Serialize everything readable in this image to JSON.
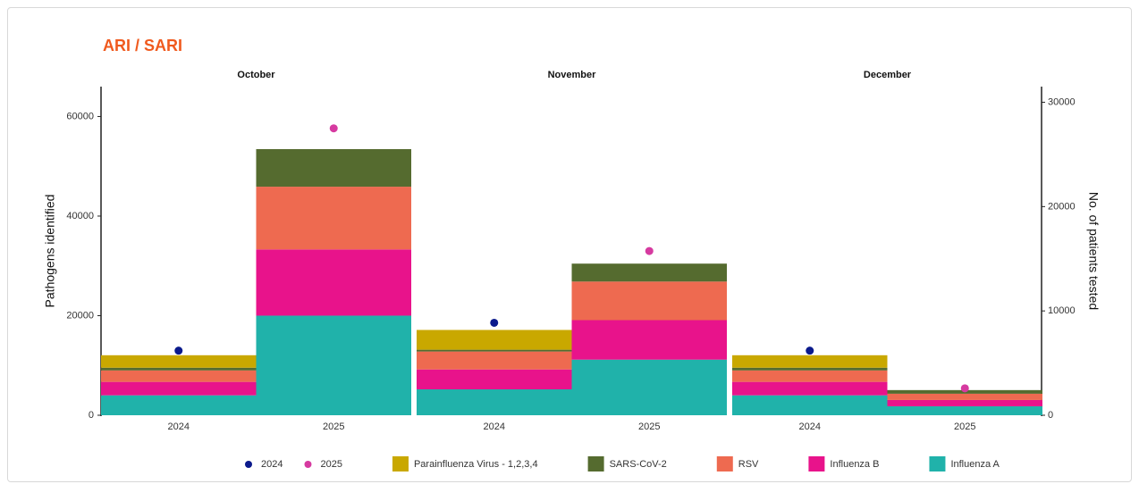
{
  "title": "ARI / SARI",
  "y_label": "Pathogens identified",
  "y2_label": "No. of patients tested",
  "ylim": [
    0,
    66000
  ],
  "yticks": [
    0,
    20000,
    40000,
    60000
  ],
  "y2lim": [
    0,
    31500
  ],
  "y2ticks": [
    0,
    10000,
    20000,
    30000
  ],
  "legend": "bottom",
  "chart_data": [
    {
      "type": "bar",
      "stacked": true,
      "title": "October",
      "categories": [
        "2024",
        "2025"
      ],
      "series": [
        {
          "name": "2024",
          "type": "scatter",
          "axis": "y2",
          "color": "#0b1a8c",
          "values": [
            6190,
            null
          ]
        },
        {
          "name": "2025",
          "type": "scatter",
          "axis": "y2",
          "color": "#d63aa0",
          "values": [
            null,
            27500
          ]
        },
        {
          "name": "Parainfluenza Virus - 1,2,3,4",
          "color": "#c9a800",
          "values": [
            2500,
            0
          ]
        },
        {
          "name": "SARS-CoV-2",
          "color": "#556b2f",
          "values": [
            550,
            7550
          ]
        },
        {
          "name": "RSV",
          "color": "#ee6a50",
          "values": [
            2300,
            12600
          ]
        },
        {
          "name": "Influenza B",
          "color": "#e8138b",
          "values": [
            2700,
            13300
          ]
        },
        {
          "name": "Influenza A",
          "color": "#20b2aa",
          "values": [
            4000,
            20000
          ]
        }
      ]
    },
    {
      "type": "bar",
      "stacked": true,
      "title": "November",
      "categories": [
        "2024",
        "2025"
      ],
      "series": [
        {
          "name": "2024",
          "type": "scatter",
          "axis": "y2",
          "color": "#0b1a8c",
          "values": [
            8860,
            null
          ]
        },
        {
          "name": "2025",
          "type": "scatter",
          "axis": "y2",
          "color": "#d63aa0",
          "values": [
            null,
            15740
          ]
        },
        {
          "name": "Parainfluenza Virus - 1,2,3,4",
          "color": "#c9a800",
          "values": [
            3970,
            0
          ]
        },
        {
          "name": "SARS-CoV-2",
          "color": "#556b2f",
          "values": [
            360,
            3600
          ]
        },
        {
          "name": "RSV",
          "color": "#ee6a50",
          "values": [
            3600,
            7750
          ]
        },
        {
          "name": "Influenza B",
          "color": "#e8138b",
          "values": [
            4000,
            7930
          ]
        },
        {
          "name": "Influenza A",
          "color": "#20b2aa",
          "values": [
            5200,
            11170
          ]
        }
      ]
    },
    {
      "type": "bar",
      "stacked": true,
      "title": "December",
      "categories": [
        "2024",
        "2025"
      ],
      "series": [
        {
          "name": "2024",
          "type": "scatter",
          "axis": "y2",
          "color": "#0b1a8c",
          "values": [
            6190,
            null
          ]
        },
        {
          "name": "2025",
          "type": "scatter",
          "axis": "y2",
          "color": "#d63aa0",
          "values": [
            null,
            2580
          ]
        },
        {
          "name": "Parainfluenza Virus - 1,2,3,4",
          "color": "#c9a800",
          "values": [
            2500,
            0
          ]
        },
        {
          "name": "SARS-CoV-2",
          "color": "#556b2f",
          "values": [
            550,
            730
          ]
        },
        {
          "name": "RSV",
          "color": "#ee6a50",
          "values": [
            2300,
            1260
          ]
        },
        {
          "name": "Influenza B",
          "color": "#e8138b",
          "values": [
            2700,
            1260
          ]
        },
        {
          "name": "Influenza A",
          "color": "#20b2aa",
          "values": [
            4000,
            1800
          ]
        }
      ]
    }
  ]
}
